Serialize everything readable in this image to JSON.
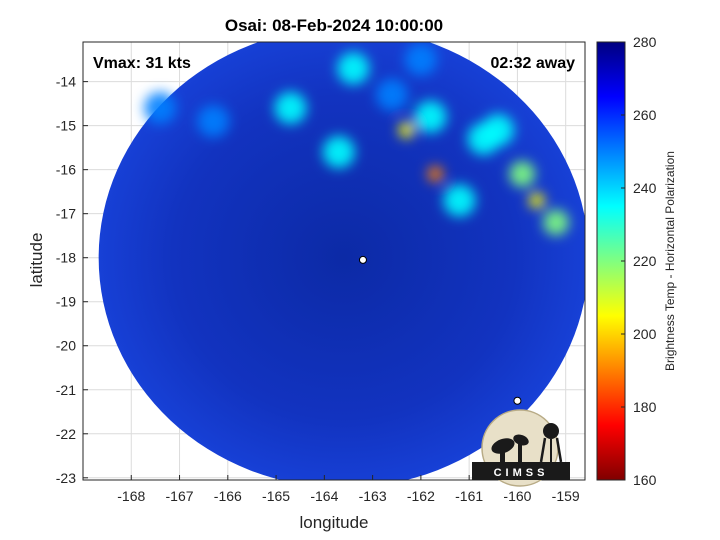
{
  "chart_data": {
    "type": "heatmap",
    "title": "Osai: 08-Feb-2024 10:00:00",
    "xlabel": "longitude",
    "ylabel": "latitude",
    "xlim": [
      -169.0,
      -158.6
    ],
    "ylim": [
      -23.05,
      -13.1
    ],
    "x_ticks": [
      -168,
      -167,
      -166,
      -165,
      -164,
      -163,
      -162,
      -161,
      -160,
      -159
    ],
    "y_ticks": [
      -14,
      -15,
      -16,
      -17,
      -18,
      -19,
      -20,
      -21,
      -22,
      -23
    ],
    "grid": true,
    "annotations": {
      "vmax": "Vmax: 31 kts",
      "away": "02:32 away"
    },
    "colorbar": {
      "label": "Brightness Temp - Horizontal Polarization",
      "min": 160,
      "max": 280,
      "ticks": [
        160,
        180,
        200,
        220,
        240,
        260,
        280
      ],
      "colors": [
        "#800000",
        "#ff0000",
        "#ff8000",
        "#ffff00",
        "#80ff80",
        "#00ffff",
        "#0080ff",
        "#0000ff",
        "#000080"
      ]
    },
    "swath": {
      "center_lon": -163.6,
      "center_lat": -18.0,
      "base_value": 263,
      "features": [
        {
          "lon": -159.2,
          "lat": -17.2,
          "value": 222
        },
        {
          "lon": -159.6,
          "lat": -16.7,
          "value": 200
        },
        {
          "lon": -159.9,
          "lat": -16.1,
          "value": 218
        },
        {
          "lon": -160.4,
          "lat": -15.1,
          "value": 236
        },
        {
          "lon": -161.7,
          "lat": -16.1,
          "value": 190
        },
        {
          "lon": -162.3,
          "lat": -15.1,
          "value": 200
        },
        {
          "lon": -161.2,
          "lat": -16.7,
          "value": 232
        },
        {
          "lon": -161.8,
          "lat": -14.8,
          "value": 238
        },
        {
          "lon": -162.6,
          "lat": -14.3,
          "value": 244
        },
        {
          "lon": -163.4,
          "lat": -13.7,
          "value": 240
        },
        {
          "lon": -163.7,
          "lat": -15.6,
          "value": 240
        },
        {
          "lon": -164.7,
          "lat": -14.6,
          "value": 240
        },
        {
          "lon": -166.3,
          "lat": -14.9,
          "value": 244
        },
        {
          "lon": -167.4,
          "lat": -14.6,
          "value": 246
        },
        {
          "lon": -162.0,
          "lat": -13.5,
          "value": 246
        },
        {
          "lon": -160.7,
          "lat": -15.3,
          "value": 238
        }
      ]
    },
    "markers": [
      {
        "lon": -163.2,
        "lat": -18.05
      },
      {
        "lon": -160.0,
        "lat": -21.25
      }
    ],
    "logo_text": "CIMSS"
  }
}
